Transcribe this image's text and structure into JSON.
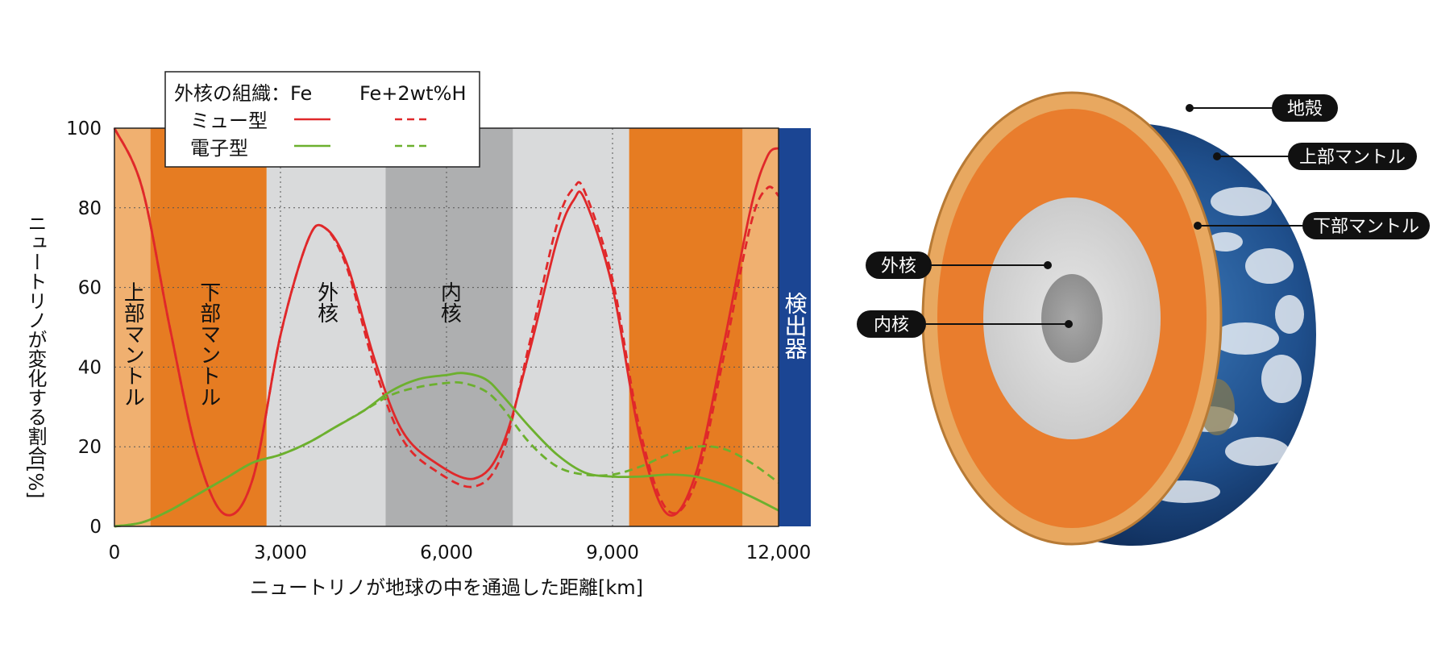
{
  "chart_data": {
    "type": "line",
    "xlabel": "ニュートリノが地球の中を通過した距離[km]",
    "ylabel": "ニュートリノが変化する割合[%]",
    "xlim": [
      0,
      12000
    ],
    "ylim": [
      0,
      100
    ],
    "x_ticks": [
      "0",
      "3,000",
      "6,000",
      "9,000",
      "12,000"
    ],
    "y_ticks": [
      "0",
      "20",
      "40",
      "60",
      "80",
      "100"
    ],
    "grid": "dotted",
    "legend": {
      "placement": "top-left",
      "header": "外核の組織：Fe",
      "header2": "Fe+2wt%H",
      "rows": [
        "ミュー型",
        "電子型"
      ]
    },
    "regions": [
      {
        "label": "上部マントル",
        "from": 0,
        "to": 650,
        "color": "#f0b070"
      },
      {
        "label": "下部マントル",
        "from": 650,
        "to": 2750,
        "color": "#e67c22"
      },
      {
        "label": "外核",
        "from": 2750,
        "to": 4900,
        "color": "#d9dadb"
      },
      {
        "label": "内核",
        "from": 4900,
        "to": 7200,
        "color": "#aeafb0"
      },
      {
        "label": "",
        "from": 7200,
        "to": 9300,
        "color": "#d9dadb"
      },
      {
        "label": "",
        "from": 9300,
        "to": 11350,
        "color": "#e67c22"
      },
      {
        "label": "",
        "from": 11350,
        "to": 12000,
        "color": "#f0b070"
      }
    ],
    "detector_label": "検出器",
    "series": [
      {
        "name": "ミュー型",
        "composition": "Fe",
        "color": "#e0282a",
        "dash": "solid",
        "x": [
          0,
          500,
          1000,
          1500,
          2000,
          2500,
          3000,
          3500,
          3800,
          4200,
          4700,
          5200,
          5800,
          6500,
          7000,
          7500,
          8000,
          8300,
          8500,
          9000,
          9500,
          10000,
          10500,
          11000,
          11500,
          11800,
          12000
        ],
        "y": [
          100,
          85,
          50,
          18,
          3,
          12,
          48,
          72,
          75,
          66,
          42,
          24,
          16,
          12,
          20,
          44,
          72,
          82,
          82,
          60,
          22,
          3,
          13,
          45,
          80,
          93,
          95
        ]
      },
      {
        "name": "ミュー型",
        "composition": "Fe+2wt%H",
        "color": "#e0282a",
        "dash": "dashed",
        "x": [
          0,
          500,
          1000,
          1500,
          2000,
          2500,
          3000,
          3500,
          3800,
          4200,
          4700,
          5200,
          5800,
          6500,
          7000,
          7500,
          8000,
          8300,
          8500,
          9000,
          9500,
          10000,
          10500,
          11000,
          11500,
          11800,
          12000
        ],
        "y": [
          100,
          85,
          50,
          18,
          3,
          12,
          48,
          72,
          75,
          65,
          40,
          22,
          14,
          10,
          18,
          46,
          76,
          85,
          84,
          62,
          24,
          4,
          11,
          42,
          76,
          85,
          83
        ]
      },
      {
        "name": "電子型",
        "composition": "Fe",
        "color": "#6cb02e",
        "dash": "solid",
        "x": [
          0,
          500,
          1000,
          1500,
          2000,
          2500,
          3000,
          3500,
          4000,
          4500,
          5000,
          5500,
          6000,
          6300,
          6700,
          7000,
          7500,
          8000,
          8500,
          9000,
          9500,
          10000,
          10500,
          11000,
          11500,
          12000
        ],
        "y": [
          0,
          1,
          4,
          8,
          12,
          16,
          18,
          21,
          25,
          29,
          34,
          37,
          38,
          38.5,
          37,
          33,
          25,
          18,
          13.5,
          12.5,
          12.5,
          13,
          12.5,
          10.5,
          7.5,
          4
        ]
      },
      {
        "name": "電子型",
        "composition": "Fe+2wt%H",
        "color": "#6cb02e",
        "dash": "dashed",
        "x": [
          0,
          500,
          1000,
          1500,
          2000,
          2500,
          3000,
          3500,
          4000,
          4500,
          5000,
          5500,
          6000,
          6300,
          6700,
          7000,
          7500,
          8000,
          8500,
          9000,
          9500,
          10000,
          10500,
          11000,
          11500,
          12000
        ],
        "y": [
          0,
          1,
          4,
          8,
          12,
          16,
          18,
          21,
          25,
          29,
          33,
          35,
          36,
          36,
          34,
          30,
          21,
          15,
          13,
          13,
          15,
          18,
          20,
          19.5,
          16,
          11
        ]
      }
    ]
  },
  "earth_diagram": {
    "labels": {
      "crust": "地殻",
      "upper_mantle": "上部マントル",
      "lower_mantle": "下部マントル",
      "outer_core": "外核",
      "inner_core": "内核"
    },
    "colors": {
      "crust": "#e8a860",
      "mantle": "#e97d2d",
      "outer_core": "#d8d8d8",
      "inner_core": "#9d9d9d",
      "ocean": "#1e4e86"
    }
  }
}
